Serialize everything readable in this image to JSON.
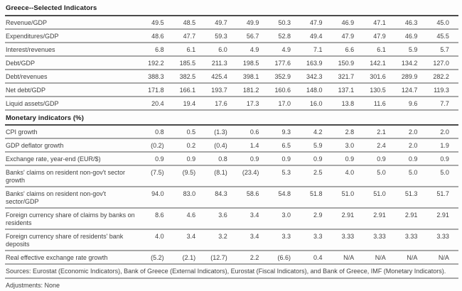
{
  "chart_data": {
    "type": "table",
    "title": "Greece--Selected Indicators",
    "column_headers": [],
    "sections": [
      {
        "header": "",
        "rows": [
          {
            "label": "Revenue/GDP",
            "values": [
              "49.5",
              "48.5",
              "49.7",
              "49.9",
              "50.3",
              "47.9",
              "46.9",
              "47.1",
              "46.3",
              "45.0"
            ]
          },
          {
            "label": "Expenditures/GDP",
            "values": [
              "48.6",
              "47.7",
              "59.3",
              "56.7",
              "52.8",
              "49.4",
              "47.9",
              "47.9",
              "46.9",
              "45.5"
            ]
          },
          {
            "label": "Interest/revenues",
            "values": [
              "6.8",
              "6.1",
              "6.0",
              "4.9",
              "4.9",
              "7.1",
              "6.6",
              "6.1",
              "5.9",
              "5.7"
            ]
          },
          {
            "label": "Debt/GDP",
            "values": [
              "192.2",
              "185.5",
              "211.3",
              "198.5",
              "177.6",
              "163.9",
              "150.9",
              "142.1",
              "134.2",
              "127.0"
            ]
          },
          {
            "label": "Debt/revenues",
            "values": [
              "388.3",
              "382.5",
              "425.4",
              "398.1",
              "352.9",
              "342.3",
              "321.7",
              "301.6",
              "289.9",
              "282.2"
            ]
          },
          {
            "label": "Net debt/GDP",
            "values": [
              "171.8",
              "166.1",
              "193.7",
              "181.2",
              "160.6",
              "148.0",
              "137.1",
              "130.5",
              "124.7",
              "119.3"
            ]
          },
          {
            "label": "Liquid assets/GDP",
            "values": [
              "20.4",
              "19.4",
              "17.6",
              "17.3",
              "17.0",
              "16.0",
              "13.8",
              "11.6",
              "9.6",
              "7.7"
            ]
          }
        ]
      },
      {
        "header": "Monetary indicators (%)",
        "rows": [
          {
            "label": "CPI growth",
            "values": [
              "0.8",
              "0.5",
              "(1.3)",
              "0.6",
              "9.3",
              "4.2",
              "2.8",
              "2.1",
              "2.0",
              "2.0"
            ]
          },
          {
            "label": "GDP deflator growth",
            "values": [
              "(0.2)",
              "0.2",
              "(0.4)",
              "1.4",
              "6.5",
              "5.9",
              "3.0",
              "2.4",
              "2.0",
              "1.9"
            ]
          },
          {
            "label": "Exchange rate, year-end (EUR/$)",
            "values": [
              "0.9",
              "0.9",
              "0.8",
              "0.9",
              "0.9",
              "0.9",
              "0.9",
              "0.9",
              "0.9",
              "0.9"
            ]
          },
          {
            "label": "Banks' claims on resident non-gov't sector\ngrowth",
            "values": [
              "(7.5)",
              "(9.5)",
              "(8.1)",
              "(23.4)",
              "5.3",
              "2.5",
              "4.0",
              "5.0",
              "5.0",
              "5.0"
            ]
          },
          {
            "label": "Banks' claims on resident non-gov't\nsector/GDP",
            "values": [
              "94.0",
              "83.0",
              "84.3",
              "58.6",
              "54.8",
              "51.8",
              "51.0",
              "51.0",
              "51.3",
              "51.7"
            ]
          },
          {
            "label": "Foreign currency share of claims by banks on\nresidents",
            "values": [
              "8.6",
              "4.6",
              "3.6",
              "3.4",
              "3.0",
              "2.9",
              "2.91",
              "2.91",
              "2.91",
              "2.91"
            ]
          },
          {
            "label": "Foreign currency share of residents' bank\ndeposits",
            "values": [
              "4.0",
              "3.4",
              "3.2",
              "3.4",
              "3.3",
              "3.3",
              "3.33",
              "3.33",
              "3.33",
              "3.33"
            ]
          },
          {
            "label": "Real effective exchange rate growth",
            "values": [
              "(5.2)",
              "(2.1)",
              "(12.7)",
              "2.2",
              "(6.6)",
              "0.4",
              "N/A",
              "N/A",
              "N/A",
              "N/A"
            ]
          }
        ]
      }
    ],
    "footnotes": [
      "Sources: Eurostat (Economic Indicators), Bank of Greece (External Indicators), Eurostat (Fiscal Indicators), and Bank of Greece, IMF (Monetary Indicators).",
      "Adjustments: None"
    ],
    "layout": {
      "grid": "horizontal rules between every row",
      "negative_number_style": "parentheses",
      "value_alignment": "right"
    },
    "colors": {
      "background": "#fdfdfd",
      "text": "#424242",
      "header_text": "#1a1a1a",
      "row_rule": "#a8a8a8",
      "header_rule": "#4a4a4a"
    }
  }
}
